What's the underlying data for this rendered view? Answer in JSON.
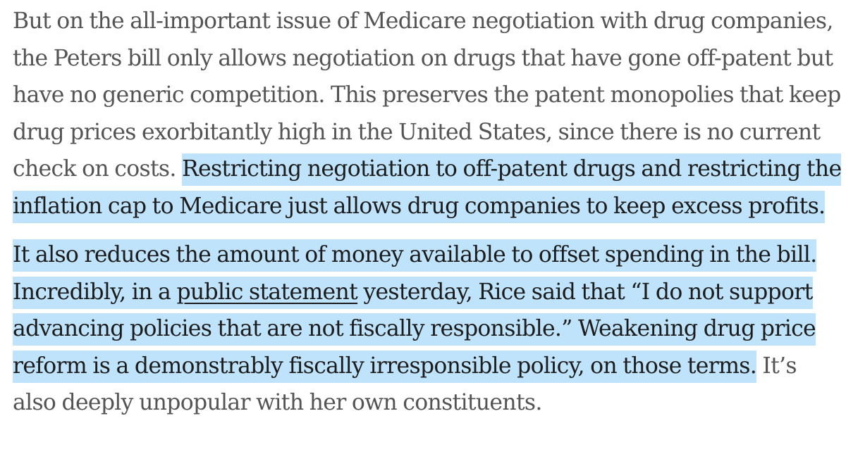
{
  "article": {
    "paragraph_1": {
      "plain": "But on the all-important issue of Medicare negotiation with drug companies, the Peters bill only allows negotiation on drugs that have gone off-patent but have no generic competition. This preserves the patent monopolies that keep drug prices exorbitantly high in the United States, since there is no current check on costs. ",
      "highlight": "Restricting negotiation to off-patent drugs and restricting the inflation cap to Medicare just allows drug companies to keep excess profits."
    },
    "paragraph_2": {
      "highlight_before_link": "It also reduces the amount of money available to offset spending in the bill. Incredibly, in a ",
      "link_text": "public statement",
      "highlight_after_link": " yesterday, Rice said that “I do not support advancing policies that are not fiscally responsible.” Weakening drug price reform is a demonstrably fiscally irresponsible policy, on those terms.",
      "plain_tail": " It’s also deeply unpopular with her own constituents."
    }
  },
  "colors": {
    "text": "#545454",
    "highlight_text": "#1c1c1c",
    "highlight_background": "#bfe3fb",
    "page_background": "#ffffff"
  }
}
